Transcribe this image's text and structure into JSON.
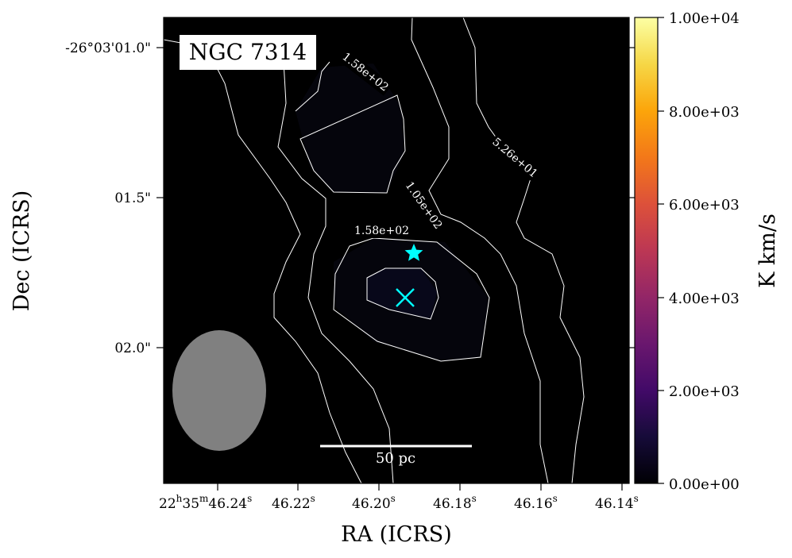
{
  "chart_data": {
    "type": "heatmap",
    "title": "",
    "object_label": "NGC 7314",
    "xlabel": "RA (ICRS)",
    "ylabel": "Dec (ICRS)",
    "x_ticks": [
      {
        "label": "22h35m46.24s",
        "parts": [
          "22",
          "h",
          "35",
          "m",
          "46.24",
          "s"
        ]
      },
      {
        "label": "46.22s",
        "parts": [
          "46.22",
          "s"
        ]
      },
      {
        "label": "46.20s",
        "parts": [
          "46.20",
          "s"
        ]
      },
      {
        "label": "46.18s",
        "parts": [
          "46.18",
          "s"
        ]
      },
      {
        "label": "46.16s",
        "parts": [
          "46.16",
          "s"
        ]
      },
      {
        "label": "46.14s",
        "parts": [
          "46.14",
          "s"
        ]
      }
    ],
    "y_ticks": [
      "-26°03'01.0\"",
      "01.5\"",
      "02.0\""
    ],
    "colorbar": {
      "label": "K km/s",
      "colormap": "inferno",
      "range": [
        0,
        10000
      ],
      "ticks": [
        "0.00e+00",
        "2.00e+03",
        "4.00e+03",
        "6.00e+03",
        "8.00e+03",
        "1.00e+04"
      ]
    },
    "contour_levels": [
      "5.26e+01",
      "1.05e+02",
      "1.58e+02"
    ],
    "contour_labels": [
      {
        "text": "1.58e+02"
      },
      {
        "text": "5.26e+01"
      },
      {
        "text": "1.05e+02"
      },
      {
        "text": "1.58e+02"
      }
    ],
    "markers": [
      {
        "type": "star",
        "color": "#00ffff"
      },
      {
        "type": "x",
        "color": "#00ffff"
      }
    ],
    "scale_bar": {
      "label": "50 pc",
      "color": "#ffffff"
    },
    "beam": {
      "color": "#808080"
    },
    "background_color": "#000000",
    "contour_color": "#ffffff"
  }
}
